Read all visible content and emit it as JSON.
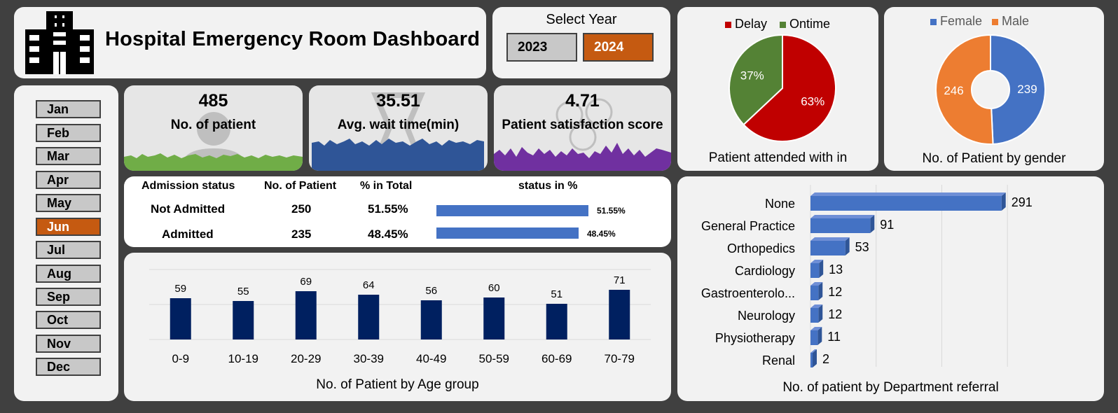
{
  "title": "Hospital Emergency Room Dashboard",
  "year_selector": {
    "label": "Select Year",
    "options": [
      "2023",
      "2024"
    ],
    "selected": "2024"
  },
  "months": {
    "items": [
      "Jan",
      "Feb",
      "Mar",
      "Apr",
      "May",
      "Jun",
      "Jul",
      "Aug",
      "Sep",
      "Oct",
      "Nov",
      "Dec"
    ],
    "selected": "Jun"
  },
  "kpis": {
    "patients": {
      "value": "485",
      "label": "No. of patient"
    },
    "wait": {
      "value": "35.51",
      "label": "Avg. wait time(min)"
    },
    "satisfaction": {
      "value": "4.71",
      "label": "Patient satisfaction score"
    }
  },
  "admission": {
    "headers": [
      "Admission status",
      "No. of Patient",
      "% in  Total",
      "status in %"
    ],
    "rows": [
      {
        "status": "Not Admitted",
        "count": "250",
        "pct": "51.55%",
        "bar": 0.5155
      },
      {
        "status": "Admitted",
        "count": "235",
        "pct": "48.45%",
        "bar": 0.4845
      }
    ]
  },
  "colors": {
    "accent_orange": "#c55a11",
    "delay": "#c00000",
    "ontime": "#548235",
    "female": "#4472c4",
    "male": "#ed7d31",
    "navy_bar": "#002060",
    "blue_bar": "#4472c4",
    "kpi_green": "#70ad47",
    "kpi_blue": "#2f5597",
    "kpi_purple": "#7030a0"
  },
  "chart_data": [
    {
      "id": "ontime",
      "type": "pie",
      "title": "Patient attended with in",
      "legend": [
        "Delay",
        "Ontime"
      ],
      "values": [
        63,
        37
      ],
      "labels": [
        "63%",
        "37%"
      ],
      "legend_position": "top"
    },
    {
      "id": "gender",
      "type": "pie",
      "title": "No. of Patient by gender",
      "legend": [
        "Female",
        "Male"
      ],
      "values": [
        239,
        246
      ],
      "labels": [
        "239",
        "246"
      ],
      "legend_position": "top"
    },
    {
      "id": "age",
      "type": "bar",
      "title": "No. of Patient by Age group",
      "categories": [
        "0-9",
        "10-19",
        "20-29",
        "30-39",
        "40-49",
        "50-59",
        "60-69",
        "70-79"
      ],
      "values": [
        59,
        55,
        69,
        64,
        56,
        60,
        51,
        71
      ],
      "ylim": [
        0,
        100
      ],
      "grid": true
    },
    {
      "id": "dept",
      "type": "bar",
      "orientation": "horizontal",
      "title": "No. of patient by Department referral",
      "categories": [
        "None",
        "General Practice",
        "Orthopedics",
        "Cardiology",
        "Gastroenterolo...",
        "Neurology",
        "Physiotherapy",
        "Renal"
      ],
      "values": [
        291,
        91,
        53,
        13,
        12,
        12,
        11,
        2
      ],
      "xlim": [
        0,
        350
      ],
      "grid": true
    }
  ]
}
